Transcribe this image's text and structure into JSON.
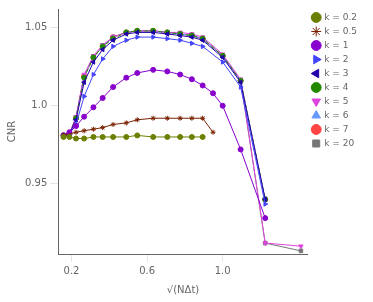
{
  "chart_data": {
    "type": "line",
    "xlabel": "√(NΔt)",
    "ylabel": "CNR",
    "xlim": [
      0.13,
      1.45
    ],
    "ylim": [
      0.905,
      1.062
    ],
    "xticks": [
      0.2,
      0.6,
      {
        "value": 1.0,
        "label": "1.0"
      }
    ],
    "yticks": [
      0.95,
      {
        "value": 1.0,
        "label": "1.0"
      },
      1.05
    ],
    "grid": false,
    "legend": "upper right",
    "series": [
      {
        "name": "k = 0.2",
        "color": "#6b8000",
        "marker": "circle",
        "line_style": "solid",
        "x": [
          0.158,
          0.189,
          0.224,
          0.267,
          0.316,
          0.365,
          0.42,
          0.49,
          0.548,
          0.632,
          0.707,
          0.775,
          0.837,
          0.894
        ],
        "values": [
          0.98,
          0.98,
          0.979,
          0.979,
          0.98,
          0.98,
          0.98,
          0.98,
          0.981,
          0.98,
          0.98,
          0.98,
          0.98,
          0.98
        ]
      },
      {
        "name": "k = 0.5",
        "color": "#7a2200",
        "marker": "star",
        "line_style": "solid",
        "x": [
          0.158,
          0.224,
          0.267,
          0.316,
          0.365,
          0.42,
          0.49,
          0.548,
          0.632,
          0.707,
          0.775,
          0.837,
          0.894,
          0.949
        ],
        "values": [
          0.981,
          0.983,
          0.984,
          0.985,
          0.986,
          0.988,
          0.989,
          0.991,
          0.992,
          0.992,
          0.992,
          0.992,
          0.992,
          0.983
        ]
      },
      {
        "name": "k = 1",
        "color": "#8800cc",
        "marker": "circle",
        "line_style": "solid",
        "x": [
          0.158,
          0.189,
          0.224,
          0.267,
          0.316,
          0.365,
          0.42,
          0.49,
          0.548,
          0.632,
          0.707,
          0.775,
          0.837,
          0.894,
          0.949,
          1.0,
          1.095,
          1.225
        ],
        "values": [
          0.981,
          0.983,
          0.987,
          0.993,
          0.999,
          1.005,
          1.012,
          1.018,
          1.021,
          1.023,
          1.022,
          1.02,
          1.017,
          1.013,
          1.008,
          1.0,
          0.972,
          0.928
        ]
      },
      {
        "name": "k = 2",
        "color": "#4444ff",
        "marker": "triangle-right",
        "line_style": "solid",
        "x": [
          0.158,
          0.189,
          0.224,
          0.267,
          0.316,
          0.365,
          0.42,
          0.49,
          0.548,
          0.632,
          0.707,
          0.775,
          0.837,
          0.894,
          1.0,
          1.095,
          1.225
        ],
        "values": [
          0.981,
          0.982,
          0.988,
          1.006,
          1.02,
          1.03,
          1.038,
          1.042,
          1.044,
          1.044,
          1.043,
          1.042,
          1.04,
          1.038,
          1.028,
          1.012,
          0.937
        ]
      },
      {
        "name": "k = 3",
        "color": "#2200aa",
        "marker": "triangle-left",
        "line_style": "solid",
        "x": [
          0.158,
          0.189,
          0.224,
          0.267,
          0.316,
          0.365,
          0.42,
          0.49,
          0.548,
          0.632,
          0.707,
          0.775,
          0.837,
          0.894,
          1.0,
          1.095,
          1.225
        ],
        "values": [
          0.981,
          0.982,
          0.991,
          1.015,
          1.028,
          1.036,
          1.042,
          1.046,
          1.047,
          1.047,
          1.046,
          1.045,
          1.044,
          1.042,
          1.031,
          1.015,
          0.94
        ]
      },
      {
        "name": "k = 4",
        "color": "#228800",
        "marker": "circle",
        "line_style": "dashed",
        "x": [
          0.158,
          0.189,
          0.224,
          0.267,
          0.316,
          0.365,
          0.42,
          0.49,
          0.548,
          0.632,
          0.707,
          0.775,
          0.837,
          0.894,
          1.0,
          1.095,
          1.225
        ],
        "values": [
          0.981,
          0.982,
          0.992,
          1.018,
          1.031,
          1.038,
          1.043,
          1.047,
          1.048,
          1.048,
          1.047,
          1.046,
          1.045,
          1.043,
          1.032,
          1.016,
          0.94
        ]
      },
      {
        "name": "k = 5",
        "color": "#dd44dd",
        "marker": "triangle-down",
        "line_style": "solid",
        "x": [
          0.158,
          0.189,
          0.224,
          0.267,
          0.316,
          0.365,
          0.42,
          0.49,
          0.548,
          0.632,
          0.707,
          0.775,
          0.837,
          0.894,
          1.0,
          1.095,
          1.225,
          1.414
        ],
        "values": [
          0.981,
          0.982,
          0.993,
          1.02,
          1.032,
          1.039,
          1.044,
          1.047,
          1.048,
          1.048,
          1.047,
          1.047,
          1.046,
          1.044,
          1.033,
          1.017,
          0.912,
          0.91
        ]
      },
      {
        "name": "k = 6",
        "color": "#6699ff",
        "marker": "triangle-up",
        "line_style": "solid",
        "x": [
          0.158,
          0.189,
          0.224,
          0.267,
          0.316,
          0.365,
          0.42,
          0.49,
          0.548,
          0.632,
          0.707,
          0.775,
          0.837,
          0.894,
          1.0,
          1.095,
          1.225
        ],
        "values": [
          0.981,
          0.982,
          0.992,
          1.019,
          1.031,
          1.038,
          1.044,
          1.047,
          1.048,
          1.048,
          1.047,
          1.046,
          1.045,
          1.043,
          1.032,
          1.016,
          0.94
        ]
      },
      {
        "name": "k = 7",
        "color": "#ff4444",
        "marker": "circle",
        "line_style": "solid",
        "x": [
          0.158,
          0.189,
          0.224,
          0.267,
          0.316,
          0.365,
          0.42,
          0.49,
          0.548,
          0.632,
          0.707,
          0.775,
          0.837,
          0.894,
          1.0,
          1.095,
          1.225
        ],
        "values": [
          0.981,
          0.982,
          0.992,
          1.019,
          1.031,
          1.038,
          1.044,
          1.047,
          1.048,
          1.048,
          1.047,
          1.046,
          1.045,
          1.043,
          1.032,
          1.016,
          0.94
        ]
      },
      {
        "name": "k = 20",
        "color": "#777777",
        "marker": "square",
        "line_style": "solid",
        "x": [
          0.158,
          0.189,
          0.224,
          0.267,
          0.316,
          0.365,
          0.42,
          0.49,
          0.548,
          0.632,
          0.707,
          0.775,
          0.837,
          0.894,
          1.0,
          1.095,
          1.225,
          1.414
        ],
        "values": [
          0.981,
          0.982,
          0.992,
          1.019,
          1.031,
          1.038,
          1.044,
          1.047,
          1.048,
          1.048,
          1.047,
          1.046,
          1.045,
          1.043,
          1.032,
          1.016,
          0.912,
          0.907
        ]
      }
    ]
  }
}
